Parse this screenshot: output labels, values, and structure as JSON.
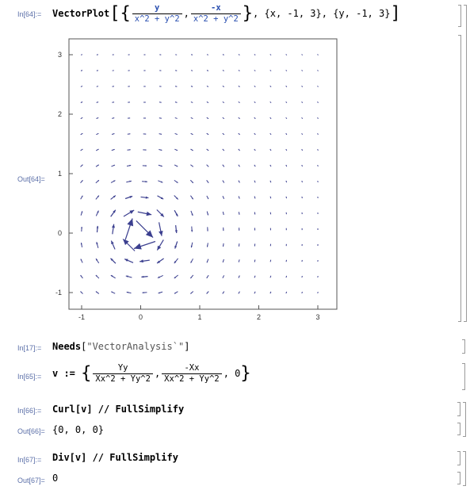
{
  "cells": {
    "in64": {
      "label": "In[64]:=",
      "head": "VectorPlot",
      "f1_num": "y",
      "f1_den": "x^2 + y^2",
      "f2_num": "-x",
      "f2_den": "x^2 + y^2",
      "range_x": "{x, -1, 3}",
      "range_y": "{y, -1, 3}"
    },
    "out64": {
      "label": "Out[64]="
    },
    "in17": {
      "label": "In[17]:=",
      "head": "Needs",
      "arg": "\"VectorAnalysis`\""
    },
    "in65": {
      "label": "In[65]:=",
      "lhs": "v :=",
      "f1_num": "Yy",
      "f1_den": "Xx^2 + Yy^2",
      "f2_num": "-Xx",
      "f2_den": "Xx^2 + Yy^2",
      "tail": ", 0"
    },
    "in66": {
      "label": "In[66]:=",
      "code": "Curl[v] // FullSimplify"
    },
    "out66": {
      "label": "Out[66]=",
      "value": "{0, 0, 0}"
    },
    "in67": {
      "label": "In[67]:=",
      "code": "Div[v] // FullSimplify"
    },
    "out67": {
      "label": "Out[67]=",
      "value": "0"
    }
  },
  "chart_data": {
    "type": "vector-field",
    "field": [
      "y/(x^2+y^2)",
      "-x/(x^2+y^2)"
    ],
    "xlim": [
      -1,
      3
    ],
    "ylim": [
      -1,
      3
    ],
    "x_ticks": [
      "-1",
      "0",
      "1",
      "2",
      "3"
    ],
    "y_ticks": [
      "-1",
      "0",
      "1",
      "2",
      "3"
    ],
    "arrow_color": "#3b3f8f",
    "grid": false
  }
}
